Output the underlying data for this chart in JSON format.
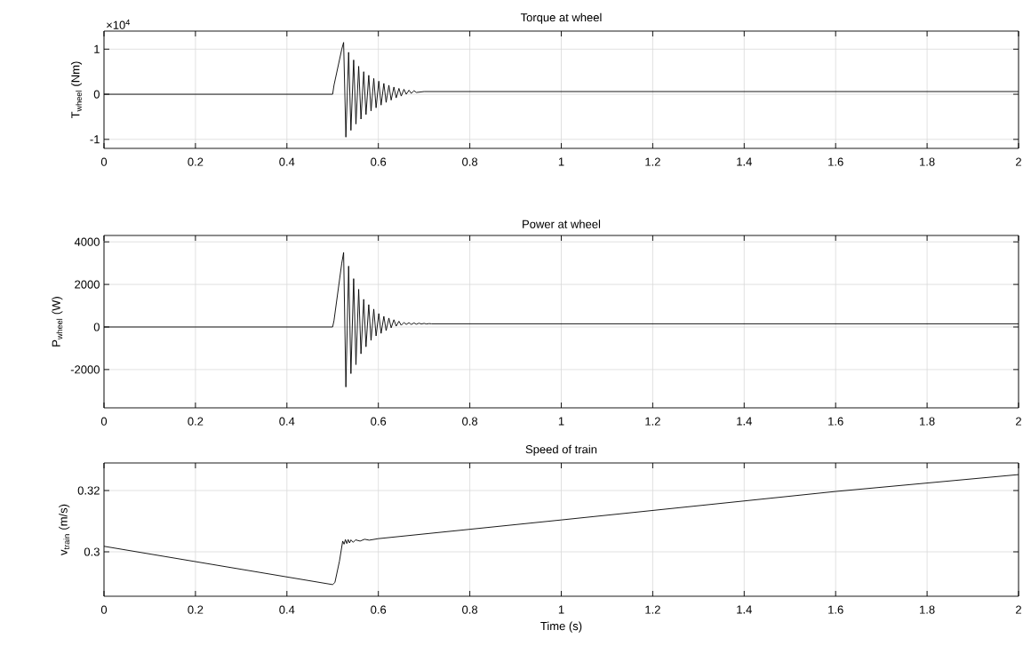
{
  "chart_data": [
    {
      "type": "line",
      "title": "Torque at wheel",
      "ylabel": "T$_{wheel}$ (Nm)",
      "annotations": [
        "×10$^{4}$"
      ],
      "color": "#000000",
      "grid": true,
      "marker": "none",
      "line_style": "solid",
      "xlim": [
        0,
        2
      ],
      "xticks": [
        0,
        0.2,
        0.4,
        0.6,
        0.8,
        1,
        1.2,
        1.4,
        1.6,
        1.8,
        2
      ],
      "ylim": [
        -1.2,
        1.4
      ],
      "yticks": [
        -1,
        0,
        1
      ],
      "x": [
        0,
        0.5,
        0.503,
        0.52,
        0.524,
        0.529,
        0.535,
        0.54,
        0.546,
        0.551,
        0.557,
        0.562,
        0.568,
        0.573,
        0.579,
        0.584,
        0.59,
        0.595,
        0.601,
        0.606,
        0.612,
        0.617,
        0.623,
        0.628,
        0.634,
        0.639,
        0.645,
        0.65,
        0.656,
        0.661,
        0.667,
        0.672,
        0.678,
        0.683,
        0.7,
        2.0
      ],
      "values": [
        0,
        0,
        0.2,
        1.0,
        1.15,
        -0.95,
        0.93,
        -0.8,
        0.76,
        -0.66,
        0.62,
        -0.55,
        0.5,
        -0.45,
        0.42,
        -0.37,
        0.35,
        -0.3,
        0.29,
        -0.24,
        0.24,
        -0.18,
        0.2,
        -0.13,
        0.16,
        -0.08,
        0.13,
        -0.04,
        0.11,
        0,
        0.09,
        0.02,
        0.08,
        0.04,
        0.06,
        0.06
      ]
    },
    {
      "type": "line",
      "title": "Power at wheel",
      "ylabel": "P$_{wheel}$ (W)",
      "color": "#000000",
      "grid": true,
      "marker": "none",
      "line_style": "solid",
      "xlim": [
        0,
        2
      ],
      "xticks": [
        0,
        0.2,
        0.4,
        0.6,
        0.8,
        1,
        1.2,
        1.4,
        1.6,
        1.8,
        2
      ],
      "ylim": [
        -3800,
        4300
      ],
      "yticks": [
        -2000,
        0,
        2000,
        4000
      ],
      "x": [
        0,
        0.5,
        0.503,
        0.52,
        0.524,
        0.529,
        0.535,
        0.54,
        0.546,
        0.551,
        0.557,
        0.562,
        0.568,
        0.573,
        0.579,
        0.584,
        0.59,
        0.595,
        0.601,
        0.606,
        0.612,
        0.617,
        0.623,
        0.628,
        0.634,
        0.639,
        0.645,
        0.65,
        0.656,
        0.661,
        0.667,
        0.672,
        0.678,
        0.683,
        0.689,
        0.694,
        0.7,
        0.705,
        0.711,
        0.716,
        0.745,
        2.0
      ],
      "values": [
        0,
        0,
        300,
        3000,
        3500,
        -2820,
        2860,
        -2190,
        2270,
        -1770,
        1770,
        -1260,
        1300,
        -930,
        1050,
        -630,
        840,
        -420,
        630,
        -300,
        500,
        -170,
        420,
        -40,
        340,
        40,
        270,
        80,
        210,
        120,
        200,
        120,
        190,
        130,
        180,
        140,
        170,
        140,
        160,
        150,
        150,
        150
      ]
    },
    {
      "type": "line",
      "title": "Speed of train",
      "xlabel": "Time (s)",
      "ylabel": "v$_{train}$ (m/s)",
      "color": "#000000",
      "grid": true,
      "marker": "none",
      "line_style": "solid",
      "xlim": [
        0,
        2
      ],
      "xticks": [
        0,
        0.2,
        0.4,
        0.6,
        0.8,
        1,
        1.2,
        1.4,
        1.6,
        1.8,
        2
      ],
      "ylim": [
        0.2855,
        0.329
      ],
      "yticks": [
        0.3,
        0.32
      ],
      "x": [
        0,
        0.5,
        0.505,
        0.515,
        0.522,
        0.525,
        0.528,
        0.531,
        0.534,
        0.537,
        0.54,
        0.545,
        0.55,
        0.56,
        0.57,
        0.58,
        0.6,
        1.0,
        1.6,
        2.0
      ],
      "values": [
        0.3018,
        0.2893,
        0.29,
        0.297,
        0.3035,
        0.3025,
        0.304,
        0.3027,
        0.304,
        0.3029,
        0.3039,
        0.3031,
        0.3039,
        0.3035,
        0.3041,
        0.3038,
        0.3043,
        0.3104,
        0.3197,
        0.3252
      ]
    }
  ]
}
